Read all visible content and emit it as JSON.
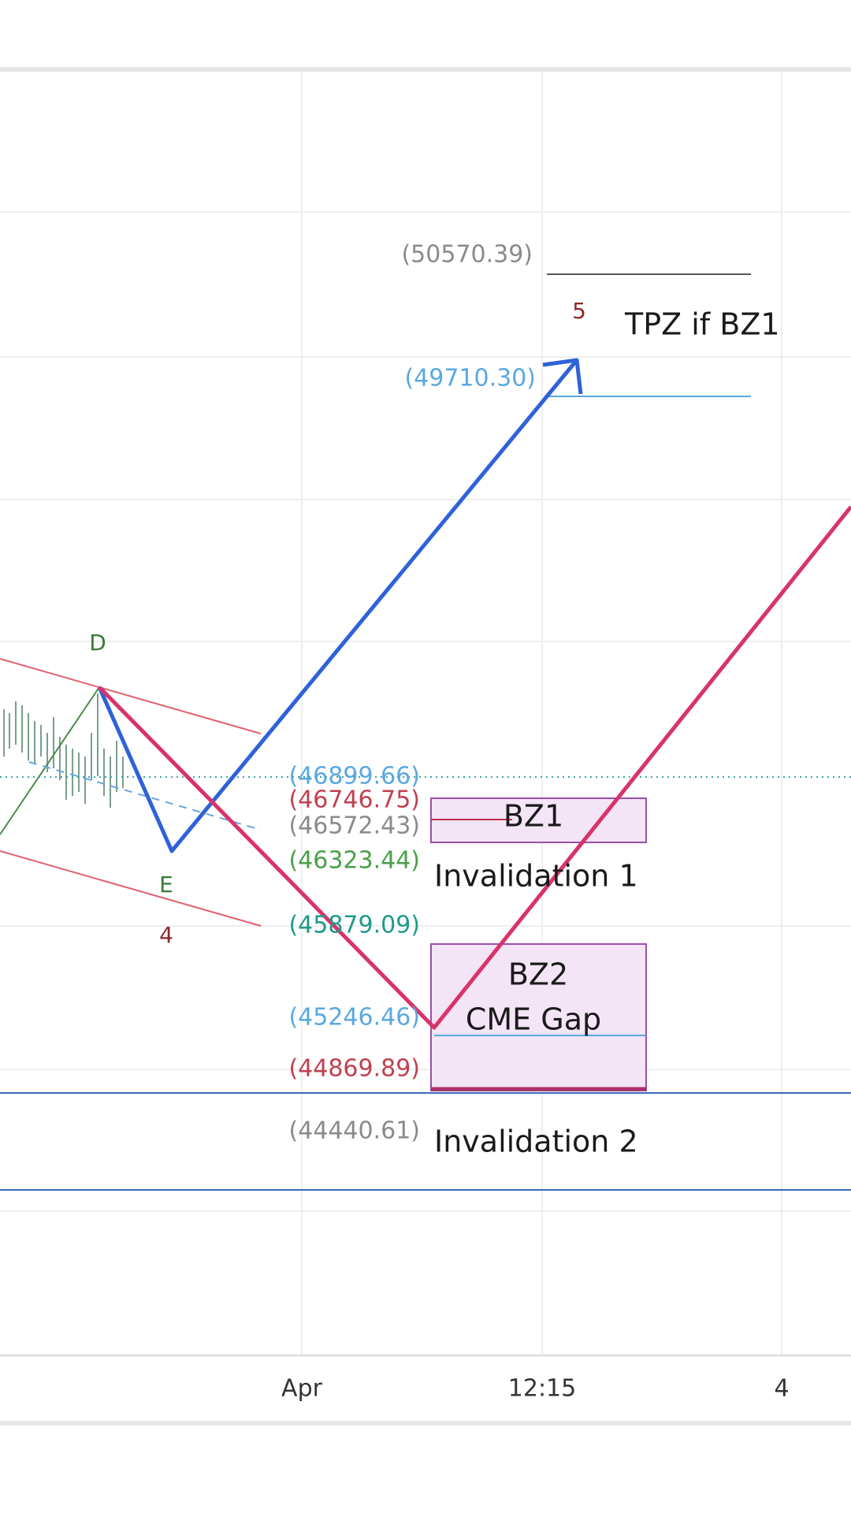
{
  "x_axis_labels": [
    "Apr",
    "12:15",
    "4"
  ],
  "price_labels": [
    "(50570.39)",
    "(49710.30)",
    "(46899.66)",
    "(46746.75)",
    "(46572.43)",
    "(46323.44)",
    "(45879.09)",
    "(45246.46)",
    "(44869.89)",
    "(44440.61)"
  ],
  "wave_labels": [
    "D",
    "E",
    "4",
    "5"
  ],
  "zones": [
    "BZ1",
    "BZ2",
    "CME Gap"
  ],
  "notes": [
    "TPZ if BZ1",
    "Invalidation 1",
    "Invalidation 2"
  ]
}
